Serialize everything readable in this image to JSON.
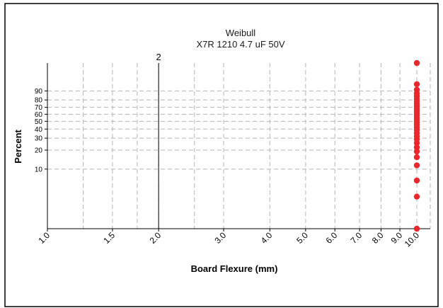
{
  "chart_data": {
    "type": "scatter",
    "title": "Weibull",
    "subtitle": "X7R 1210 4.7 uF 50V",
    "xlabel": "Board Flexure (mm)",
    "ylabel": "Percent",
    "x_scale": "log",
    "y_scale": "weibull",
    "xlim": [
      1.0,
      11.0
    ],
    "ylim": [
      1.0,
      99.9
    ],
    "grid": true,
    "x_ticks": [
      {
        "value": 1.0,
        "label": "1.0"
      },
      {
        "value": 1.5,
        "label": "1.5"
      },
      {
        "value": 2.0,
        "label": "2.0"
      },
      {
        "value": 3.0,
        "label": "3.0"
      },
      {
        "value": 4.0,
        "label": "4.0"
      },
      {
        "value": 5.0,
        "label": "5.0"
      },
      {
        "value": 6.0,
        "label": "6.0"
      },
      {
        "value": 7.0,
        "label": "7.0"
      },
      {
        "value": 8.0,
        "label": "8.0"
      },
      {
        "value": 9.0,
        "label": "9.0"
      },
      {
        "value": 10.0,
        "label": "10.0"
      }
    ],
    "x_minor_grid": [
      1.25,
      1.75,
      2.5
    ],
    "y_ticks": [
      {
        "value": 10,
        "label": "10"
      },
      {
        "value": 20,
        "label": "20"
      },
      {
        "value": 30,
        "label": "30"
      },
      {
        "value": 40,
        "label": "40"
      },
      {
        "value": 50,
        "label": "50"
      },
      {
        "value": 60,
        "label": "60"
      },
      {
        "value": 70,
        "label": "70"
      },
      {
        "value": 80,
        "label": "80"
      },
      {
        "value": 90,
        "label": "90"
      }
    ],
    "reference_line": {
      "x": 2.0,
      "label": "2"
    },
    "series": [
      {
        "color": "#e8282c",
        "points": [
          {
            "x": 10.0,
            "y": 1.0
          },
          {
            "x": 10.0,
            "y": 3.5
          },
          {
            "x": 10.0,
            "y": 6.5
          },
          {
            "x": 10.0,
            "y": 11.5
          },
          {
            "x": 10.0,
            "y": 15.5
          },
          {
            "x": 10.0,
            "y": 19
          },
          {
            "x": 10.0,
            "y": 22
          },
          {
            "x": 10.0,
            "y": 25.5
          },
          {
            "x": 10.0,
            "y": 29
          },
          {
            "x": 10.0,
            "y": 32
          },
          {
            "x": 10.0,
            "y": 35.5
          },
          {
            "x": 10.0,
            "y": 39
          },
          {
            "x": 10.0,
            "y": 42
          },
          {
            "x": 10.0,
            "y": 45.5
          },
          {
            "x": 10.0,
            "y": 48.5
          },
          {
            "x": 10.0,
            "y": 52
          },
          {
            "x": 10.0,
            "y": 55
          },
          {
            "x": 10.0,
            "y": 58.5
          },
          {
            "x": 10.0,
            "y": 61.5
          },
          {
            "x": 10.0,
            "y": 65
          },
          {
            "x": 10.0,
            "y": 68
          },
          {
            "x": 10.0,
            "y": 71.5
          },
          {
            "x": 10.0,
            "y": 74.5
          },
          {
            "x": 10.0,
            "y": 78
          },
          {
            "x": 10.0,
            "y": 81
          },
          {
            "x": 10.0,
            "y": 84.5
          },
          {
            "x": 10.0,
            "y": 87.5
          },
          {
            "x": 10.0,
            "y": 91
          },
          {
            "x": 10.0,
            "y": 95
          },
          {
            "x": 10.0,
            "y": 99.9
          }
        ]
      }
    ]
  }
}
